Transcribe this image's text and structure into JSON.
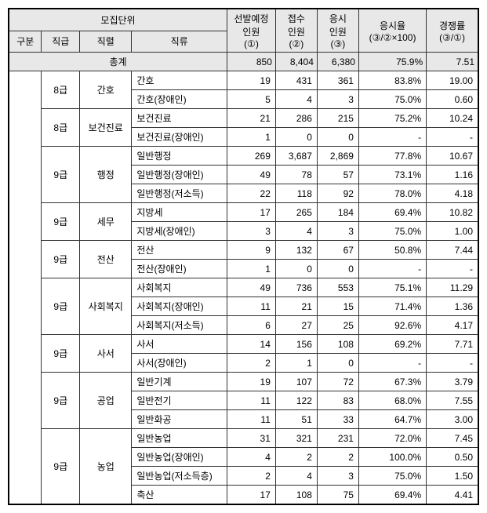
{
  "headers": {
    "group": "모집단위",
    "gubun": "구분",
    "grade": "직급",
    "series": "직렬",
    "type": "직류",
    "plan_top": "선발예정",
    "plan_bot": "인원",
    "plan_sub": "(①)",
    "apply_top": "접수",
    "apply_mid": "인원",
    "apply_sub": "(②)",
    "sit_top": "응시",
    "sit_mid": "인원",
    "sit_sub": "(③)",
    "rate_top": "응시율",
    "rate_sub": "(③/②×100)",
    "comp_top": "경쟁률",
    "comp_sub": "(③/①)",
    "total": "총계"
  },
  "totals": {
    "plan": "850",
    "apply": "8,404",
    "sit": "6,380",
    "rate": "75.9%",
    "comp": "7.51"
  },
  "groups": [
    {
      "grade": "8급",
      "series": "간호",
      "rows": [
        {
          "type": "간호",
          "plan": "19",
          "apply": "431",
          "sit": "361",
          "rate": "83.8%",
          "comp": "19.00"
        },
        {
          "type": "간호(장애인)",
          "plan": "5",
          "apply": "4",
          "sit": "3",
          "rate": "75.0%",
          "comp": "0.60"
        }
      ]
    },
    {
      "grade": "8급",
      "series": "보건진료",
      "rows": [
        {
          "type": "보건진료",
          "plan": "21",
          "apply": "286",
          "sit": "215",
          "rate": "75.2%",
          "comp": "10.24"
        },
        {
          "type": "보건진료(장애인)",
          "plan": "1",
          "apply": "0",
          "sit": "0",
          "rate": "-",
          "comp": "-"
        }
      ]
    },
    {
      "grade": "9급",
      "series": "행정",
      "rows": [
        {
          "type": "일반행정",
          "plan": "269",
          "apply": "3,687",
          "sit": "2,869",
          "rate": "77.8%",
          "comp": "10.67"
        },
        {
          "type": "일반행정(장애인)",
          "plan": "49",
          "apply": "78",
          "sit": "57",
          "rate": "73.1%",
          "comp": "1.16"
        },
        {
          "type": "일반행정(저소득)",
          "plan": "22",
          "apply": "118",
          "sit": "92",
          "rate": "78.0%",
          "comp": "4.18"
        }
      ]
    },
    {
      "grade": "9급",
      "series": "세무",
      "rows": [
        {
          "type": "지방세",
          "plan": "17",
          "apply": "265",
          "sit": "184",
          "rate": "69.4%",
          "comp": "10.82"
        },
        {
          "type": "지방세(장애인)",
          "plan": "3",
          "apply": "4",
          "sit": "3",
          "rate": "75.0%",
          "comp": "1.00"
        }
      ]
    },
    {
      "grade": "9급",
      "series": "전산",
      "rows": [
        {
          "type": "전산",
          "plan": "9",
          "apply": "132",
          "sit": "67",
          "rate": "50.8%",
          "comp": "7.44"
        },
        {
          "type": "전산(장애인)",
          "plan": "1",
          "apply": "0",
          "sit": "0",
          "rate": "-",
          "comp": "-"
        }
      ]
    },
    {
      "grade": "9급",
      "series": "사회복지",
      "rows": [
        {
          "type": "사회복지",
          "plan": "49",
          "apply": "736",
          "sit": "553",
          "rate": "75.1%",
          "comp": "11.29"
        },
        {
          "type": "사회복지(장애인)",
          "plan": "11",
          "apply": "21",
          "sit": "15",
          "rate": "71.4%",
          "comp": "1.36"
        },
        {
          "type": "사회복지(저소득)",
          "plan": "6",
          "apply": "27",
          "sit": "25",
          "rate": "92.6%",
          "comp": "4.17"
        }
      ]
    },
    {
      "grade": "9급",
      "series": "사서",
      "rows": [
        {
          "type": "사서",
          "plan": "14",
          "apply": "156",
          "sit": "108",
          "rate": "69.2%",
          "comp": "7.71"
        },
        {
          "type": "사서(장애인)",
          "plan": "2",
          "apply": "1",
          "sit": "0",
          "rate": "-",
          "comp": "-"
        }
      ]
    },
    {
      "grade": "9급",
      "series": "공업",
      "rows": [
        {
          "type": "일반기계",
          "plan": "19",
          "apply": "107",
          "sit": "72",
          "rate": "67.3%",
          "comp": "3.79"
        },
        {
          "type": "일반전기",
          "plan": "11",
          "apply": "122",
          "sit": "83",
          "rate": "68.0%",
          "comp": "7.55"
        },
        {
          "type": "일반화공",
          "plan": "11",
          "apply": "51",
          "sit": "33",
          "rate": "64.7%",
          "comp": "3.00"
        }
      ]
    },
    {
      "grade": "9급",
      "series": "농업",
      "rows": [
        {
          "type": "일반농업",
          "plan": "31",
          "apply": "321",
          "sit": "231",
          "rate": "72.0%",
          "comp": "7.45"
        },
        {
          "type": "일반농업(장애인)",
          "plan": "4",
          "apply": "2",
          "sit": "2",
          "rate": "100.0%",
          "comp": "0.50"
        },
        {
          "type": "일반농업(저소득층)",
          "plan": "2",
          "apply": "4",
          "sit": "3",
          "rate": "75.0%",
          "comp": "1.50"
        },
        {
          "type": "축산",
          "plan": "17",
          "apply": "108",
          "sit": "75",
          "rate": "69.4%",
          "comp": "4.41"
        }
      ]
    }
  ]
}
